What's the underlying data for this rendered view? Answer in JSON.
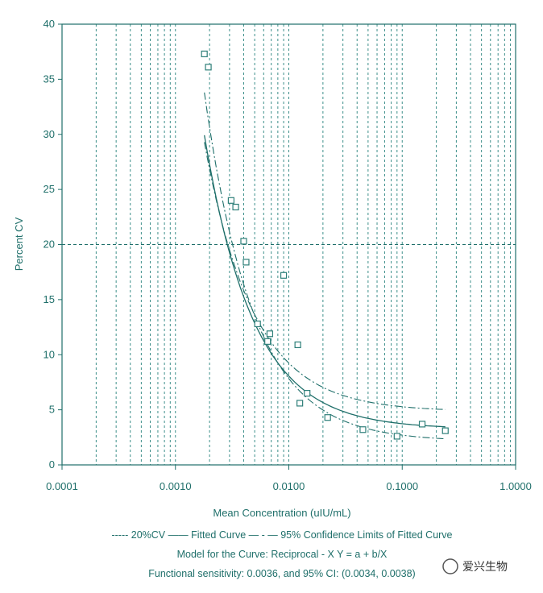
{
  "chart_data": {
    "type": "scatter",
    "xscale": "log",
    "xlim": [
      0.0001,
      1.0
    ],
    "ylim": [
      0,
      40
    ],
    "ylabel": "Percent CV",
    "xlabel": "Mean Concentration (uIU/mL)",
    "xticks": [
      "0.0001",
      "0.0010",
      "0.0100",
      "0.1000",
      "1.0000"
    ],
    "yticks": [
      "0",
      "5",
      "10",
      "15",
      "20",
      "25",
      "30",
      "35",
      "40"
    ],
    "grid": "vertical dashed log minor lines",
    "reference_line": {
      "y": 20,
      "style": "dashed"
    },
    "points": [
      {
        "x": 0.0018,
        "y": 37.3
      },
      {
        "x": 0.00195,
        "y": 36.1
      },
      {
        "x": 0.0031,
        "y": 24.0
      },
      {
        "x": 0.0034,
        "y": 23.4
      },
      {
        "x": 0.004,
        "y": 20.3
      },
      {
        "x": 0.0042,
        "y": 18.4
      },
      {
        "x": 0.0053,
        "y": 12.8
      },
      {
        "x": 0.0065,
        "y": 11.2
      },
      {
        "x": 0.0068,
        "y": 11.9
      },
      {
        "x": 0.009,
        "y": 17.2
      },
      {
        "x": 0.012,
        "y": 10.9
      },
      {
        "x": 0.0125,
        "y": 5.6
      },
      {
        "x": 0.0145,
        "y": 6.5
      },
      {
        "x": 0.022,
        "y": 4.3
      },
      {
        "x": 0.045,
        "y": 3.2
      },
      {
        "x": 0.09,
        "y": 2.6
      },
      {
        "x": 0.15,
        "y": 3.7
      },
      {
        "x": 0.24,
        "y": 3.1
      }
    ],
    "fitted_curve": {
      "model": "reciprocal",
      "a": 0.0326,
      "b": 0.00048,
      "x_range": [
        0.0018,
        0.24
      ]
    },
    "confidence_upper": {
      "a": 0.0213,
      "b": 0.00057,
      "x_range": [
        0.0018,
        0.24
      ]
    },
    "confidence_lower": {
      "a": 0.0484,
      "b": 0.00044,
      "x_range": [
        0.0018,
        0.24
      ]
    },
    "legend_text": "----- 20%CV —— Fitted Curve  — - — 95% Confidence Limits of Fitted Curve",
    "model_text": "Model for the Curve: Reciprocal - X Y = a + b/X",
    "sensitivity_text": "Functional sensitivity: 0.0036, and 95% CI: (0.0034, 0.0038)"
  },
  "watermark": "爱兴生物",
  "colors": {
    "primary": "#1f6f6a",
    "grid": "#3d8f8a",
    "point": "#2e7f79"
  }
}
